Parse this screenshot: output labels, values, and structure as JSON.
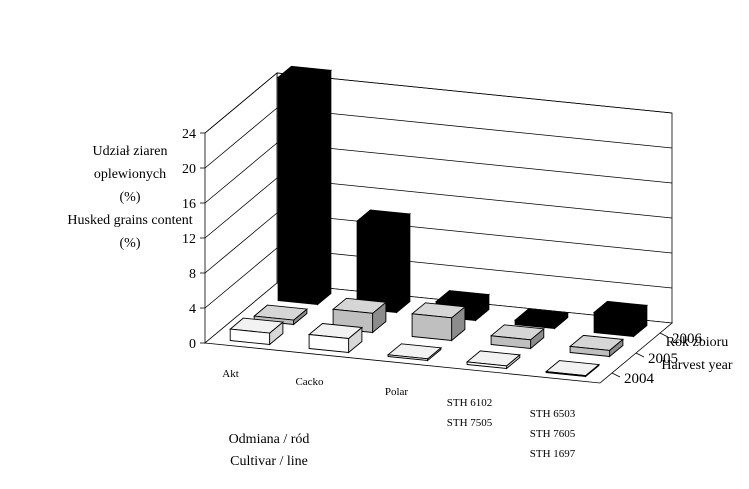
{
  "chart_data": {
    "type": "bar",
    "subtype": "3d-column",
    "title": "",
    "ylabel_lines": [
      "Udział ziaren",
      "oplewionych",
      "(%)",
      "Husked grains content",
      "(%)"
    ],
    "xlabel_lines": [
      "Odmiana / ród",
      "Cultivar / line"
    ],
    "zlabel_lines": [
      "Rok zbioru",
      "Harvest year"
    ],
    "ylim": [
      0,
      24
    ],
    "yticks": [
      0,
      4,
      8,
      12,
      16,
      20,
      24
    ],
    "categories": [
      {
        "lines": [
          "Akt"
        ]
      },
      {
        "lines": [
          "Cacko"
        ]
      },
      {
        "lines": [
          "Polar"
        ]
      },
      {
        "lines": [
          "STH 6102",
          "STH 7505"
        ]
      },
      {
        "lines": [
          "STH 6503",
          "STH 7605",
          "STH 1697"
        ]
      }
    ],
    "series": [
      {
        "name": "2004",
        "color": "#ffffff",
        "values": [
          1.3,
          1.6,
          0.2,
          0.3,
          0.1
        ]
      },
      {
        "name": "2005",
        "color": "#bfbfbf",
        "values": [
          0.5,
          2.2,
          2.6,
          1.0,
          0.7
        ]
      },
      {
        "name": "2006",
        "color": "#000000",
        "values": [
          25.5,
          10.0,
          1.7,
          0.5,
          2.3
        ]
      }
    ],
    "grid": true,
    "legend": "none"
  }
}
